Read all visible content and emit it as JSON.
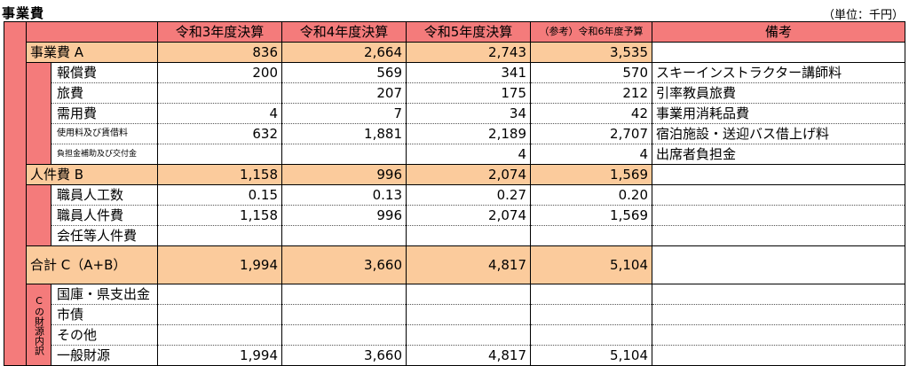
{
  "title": "事業費",
  "unit": "（単位：千円）",
  "headers": [
    "令和3年度決算",
    "令和4年度決算",
    "令和5年度決算",
    "（参考）令和6年度予算",
    "備考"
  ],
  "section_a": {
    "label": "事業費 A",
    "values": [
      "836",
      "2,664",
      "2,743",
      "3,535"
    ],
    "rows": [
      {
        "label": "報償費",
        "values": [
          "200",
          "569",
          "341",
          "570"
        ],
        "note": "スキーインストラクター講師料"
      },
      {
        "label": "旅費",
        "values": [
          "",
          "207",
          "175",
          "212"
        ],
        "note": "引率教員旅費"
      },
      {
        "label": "需用費",
        "values": [
          "4",
          "7",
          "34",
          "42"
        ],
        "note": "事業用消耗品費"
      },
      {
        "label": "使用料及び賃借料",
        "values": [
          "632",
          "1,881",
          "2,189",
          "2,707"
        ],
        "note": "宿泊施設・送迎バス借上げ料"
      },
      {
        "label": "負担金補助及び交付金",
        "values": [
          "",
          "",
          "4",
          "4"
        ],
        "note": "出席者負担金"
      }
    ]
  },
  "section_b": {
    "label": "人件費 B",
    "values": [
      "1,158",
      "996",
      "2,074",
      "1,569"
    ],
    "rows": [
      {
        "label": "職員人工数",
        "values": [
          "0.15",
          "0.13",
          "0.27",
          "0.20"
        ],
        "note": ""
      },
      {
        "label": "職員人件費",
        "values": [
          "1,158",
          "996",
          "2,074",
          "1,569"
        ],
        "note": ""
      },
      {
        "label": "会任等人件費",
        "values": [
          "",
          "",
          "",
          ""
        ],
        "note": ""
      }
    ]
  },
  "total": {
    "label": "合計 C（A+B）",
    "values": [
      "1,994",
      "3,660",
      "4,817",
      "5,104"
    ]
  },
  "source": {
    "vertical_label": "Cの財源内訳",
    "rows": [
      {
        "label": "国庫・県支出金",
        "values": [
          "",
          "",
          "",
          ""
        ]
      },
      {
        "label": "市債",
        "values": [
          "",
          "",
          "",
          ""
        ]
      },
      {
        "label": "その他",
        "values": [
          "",
          "",
          "",
          ""
        ]
      },
      {
        "label": "一般財源",
        "values": [
          "1,994",
          "3,660",
          "4,817",
          "5,104"
        ]
      }
    ]
  },
  "colors": {
    "header": "#f47b7b",
    "category": "#fbcb9c"
  }
}
